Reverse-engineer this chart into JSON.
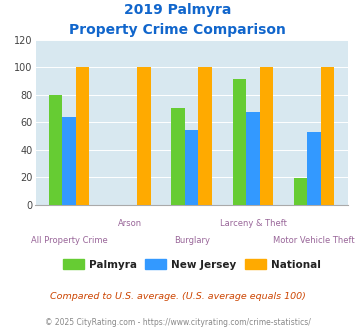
{
  "title_line1": "2019 Palmyra",
  "title_line2": "Property Crime Comparison",
  "categories": [
    "All Property Crime",
    "Arson",
    "Burglary",
    "Larceny & Theft",
    "Motor Vehicle Theft"
  ],
  "palmyra": [
    80,
    0,
    70,
    91,
    19
  ],
  "new_jersey": [
    64,
    0,
    54,
    67,
    53
  ],
  "national": [
    100,
    100,
    100,
    100,
    100
  ],
  "arson_idx": 1,
  "color_palmyra": "#66cc33",
  "color_nj": "#3399ff",
  "color_national": "#ffaa00",
  "ylim": [
    0,
    120
  ],
  "yticks": [
    0,
    20,
    40,
    60,
    80,
    100,
    120
  ],
  "note": "Compared to U.S. average. (U.S. average equals 100)",
  "footer": "© 2025 CityRating.com - https://www.cityrating.com/crime-statistics/",
  "title_color": "#1166cc",
  "xlabel_color": "#996699",
  "note_color": "#cc4400",
  "footer_color": "#888888",
  "bg_color": "#d8e8f0",
  "fig_bg": "#ffffff",
  "bar_width": 0.22
}
